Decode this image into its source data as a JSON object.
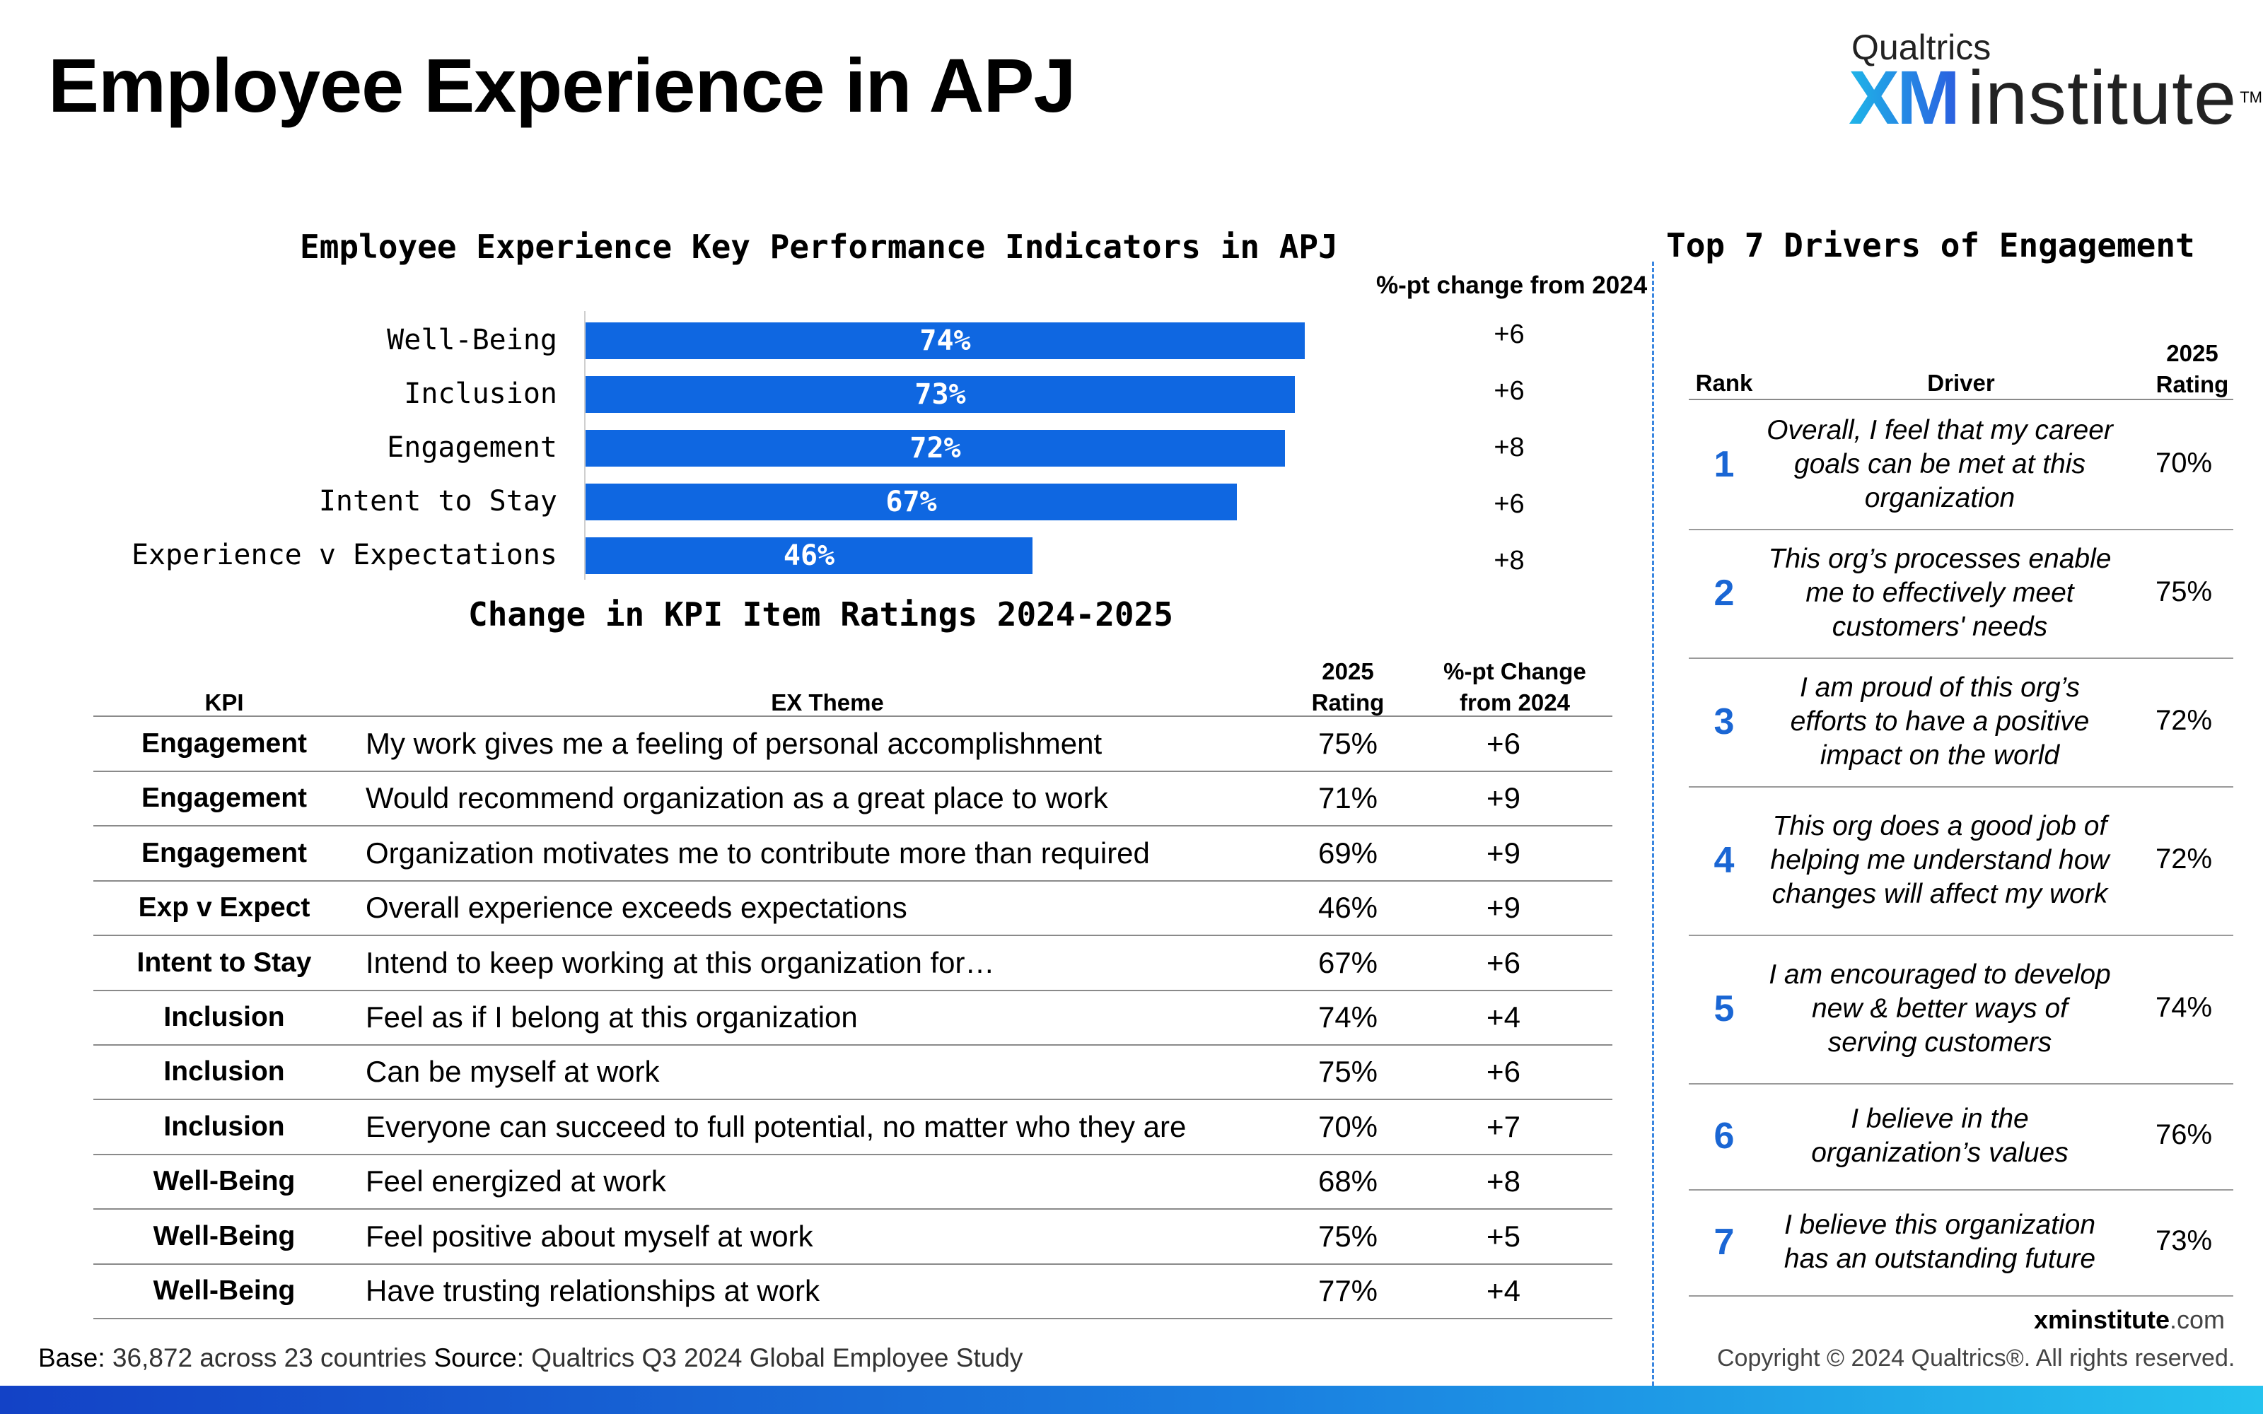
{
  "page_title": "Employee Experience in APJ",
  "logo": {
    "top": "Qualtrics",
    "xm": "XM",
    "institute": "institute",
    "tm": "TM"
  },
  "chart_data": [
    {
      "type": "bar",
      "orientation": "horizontal",
      "title": "Employee Experience Key Performance Indicators in APJ",
      "change_header": "%-pt change from 2024",
      "categories": [
        "Well-Being",
        "Inclusion",
        "Engagement",
        "Intent to Stay",
        "Experience v Expectations"
      ],
      "values": [
        74,
        73,
        72,
        67,
        46
      ],
      "value_labels": [
        "74%",
        "73%",
        "72%",
        "67%",
        "46%"
      ],
      "changes": [
        "+6",
        "+6",
        "+8",
        "+6",
        "+8"
      ],
      "xlim": [
        0,
        100
      ],
      "bar_color": "#0f67e1"
    },
    {
      "type": "table",
      "title": "Change in KPI Item Ratings 2024-2025",
      "headers": {
        "kpi": "KPI",
        "theme": "EX Theme",
        "rating_l1": "2025",
        "rating_l2": "Rating",
        "change_l1": "%-pt Change",
        "change_l2": "from 2024"
      },
      "rows": [
        {
          "kpi": "Engagement",
          "theme": "My work gives me a feeling of personal accomplishment",
          "rating": "75%",
          "change": "+6"
        },
        {
          "kpi": "Engagement",
          "theme": "Would recommend organization as a great place to work",
          "rating": "71%",
          "change": "+9"
        },
        {
          "kpi": "Engagement",
          "theme": "Organization motivates me to contribute more than required",
          "rating": "69%",
          "change": "+9"
        },
        {
          "kpi": "Exp v Expect",
          "theme": "Overall experience exceeds expectations",
          "rating": "46%",
          "change": "+9"
        },
        {
          "kpi": "Intent to Stay",
          "theme": "Intend to keep working at this organization for…",
          "rating": "67%",
          "change": "+6"
        },
        {
          "kpi": "Inclusion",
          "theme": "Feel as if I belong at this organization",
          "rating": "74%",
          "change": "+4"
        },
        {
          "kpi": "Inclusion",
          "theme": "Can be myself at work",
          "rating": "75%",
          "change": "+6"
        },
        {
          "kpi": "Inclusion",
          "theme": "Everyone can succeed to full potential, no matter who they are",
          "rating": "70%",
          "change": "+7"
        },
        {
          "kpi": "Well-Being",
          "theme": "Feel energized at work",
          "rating": "68%",
          "change": "+8"
        },
        {
          "kpi": "Well-Being",
          "theme": "Feel positive about myself at work",
          "rating": "75%",
          "change": "+5"
        },
        {
          "kpi": "Well-Being",
          "theme": "Have trusting relationships at work",
          "rating": "77%",
          "change": "+4"
        }
      ]
    },
    {
      "type": "table",
      "title": "Top 7 Drivers of Engagement",
      "headers": {
        "rank": "Rank",
        "driver": "Driver",
        "rating_l1": "2025",
        "rating_l2": "Rating"
      },
      "rows": [
        {
          "rank": "1",
          "driver": "Overall, I feel that my career goals can be met at this organization",
          "rating": "70%"
        },
        {
          "rank": "2",
          "driver": "This org’s processes enable me to effectively meet customers' needs",
          "rating": "75%"
        },
        {
          "rank": "3",
          "driver": "I am proud of this org’s efforts to have a positive impact on the world",
          "rating": "72%"
        },
        {
          "rank": "4",
          "driver": "This org does a good job of helping me understand how changes will affect my work",
          "rating": "72%"
        },
        {
          "rank": "5",
          "driver": "I am encouraged to develop new & better ways of serving customers",
          "rating": "74%"
        },
        {
          "rank": "6",
          "driver": "I believe in the organization’s values",
          "rating": "76%"
        },
        {
          "rank": "7",
          "driver": "I believe this organization has an outstanding future",
          "rating": "73%"
        }
      ]
    }
  ],
  "footer": {
    "base_label": "Base:",
    "base_text": " 36,872 across 23 countries ",
    "source_label": "Source:",
    "source_text": " Qualtrics Q3 2024 Global Employee Study",
    "site_bold": "xminstitute",
    "site_rest": ".com",
    "copyright": "Copyright © 2024 Qualtrics®. All rights reserved."
  },
  "colors": {
    "accent": "#0f67e1",
    "rank_blue": "#1a66d4",
    "divider_blue": "#3a86e0"
  }
}
